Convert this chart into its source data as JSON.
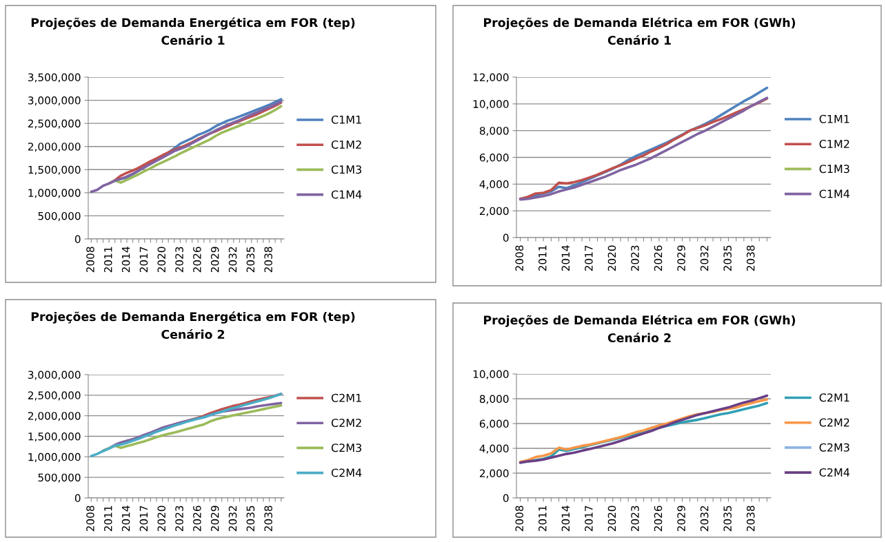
{
  "chart_data": [
    {
      "type": "line",
      "title": "Projeções de Demanda Energética em FOR (tep)",
      "subtitle": "Cenário 1",
      "categories": [
        "2008",
        null,
        null,
        "2011",
        null,
        null,
        "2014",
        null,
        null,
        "2017",
        null,
        null,
        "2020",
        null,
        null,
        "2023",
        null,
        null,
        "2026",
        null,
        null,
        "2029",
        null,
        null,
        "2032",
        null,
        null,
        "2035",
        null,
        null,
        "2038",
        null,
        null
      ],
      "series": [
        {
          "name": "C1M1",
          "color": "#4f81bd",
          "values": [
            null,
            null,
            null,
            null,
            1270000,
            1300000,
            1330000,
            1400000,
            1480000,
            1560000,
            1640000,
            1710000,
            1790000,
            1870000,
            1960000,
            2060000,
            2120000,
            2180000,
            2250000,
            2300000,
            2360000,
            2440000,
            2500000,
            2560000,
            2600000,
            2650000,
            2700000,
            2750000,
            2800000,
            2850000,
            2900000,
            2960000,
            3020000
          ]
        },
        {
          "name": "C1M2",
          "color": "#c0504d",
          "values": [
            null,
            null,
            null,
            1200000,
            1270000,
            1370000,
            1430000,
            1480000,
            1540000,
            1610000,
            1680000,
            1740000,
            1810000,
            1870000,
            1930000,
            1980000,
            2030000,
            2090000,
            2160000,
            2220000,
            2280000,
            2330000,
            2390000,
            2440000,
            2500000,
            2550000,
            2600000,
            2650000,
            2700000,
            2760000,
            2820000,
            2880000,
            2950000
          ]
        },
        {
          "name": "C1M3",
          "color": "#9bbb59",
          "values": [
            null,
            null,
            null,
            1200000,
            1260000,
            1220000,
            1280000,
            1340000,
            1400000,
            1470000,
            1530000,
            1600000,
            1660000,
            1720000,
            1780000,
            1850000,
            1910000,
            1970000,
            2030000,
            2090000,
            2150000,
            2230000,
            2300000,
            2350000,
            2400000,
            2450000,
            2500000,
            2560000,
            2610000,
            2660000,
            2720000,
            2790000,
            2870000
          ]
        },
        {
          "name": "C1M4",
          "color": "#8064a2",
          "values": [
            1020000,
            1060000,
            1150000,
            1200000,
            1260000,
            1300000,
            1350000,
            1410000,
            1480000,
            1550000,
            1620000,
            1690000,
            1760000,
            1830000,
            1900000,
            1950000,
            2000000,
            2070000,
            2140000,
            2210000,
            2280000,
            2350000,
            2410000,
            2470000,
            2520000,
            2570000,
            2630000,
            2690000,
            2740000,
            2800000,
            2850000,
            2910000,
            2970000
          ]
        }
      ],
      "ylim": [
        0,
        3500000
      ],
      "yticks": [
        {
          "value": 0,
          "label": "0"
        },
        {
          "value": 500000,
          "label": "500,000"
        },
        {
          "value": 1000000,
          "label": "1,000,000"
        },
        {
          "value": 1500000,
          "label": "1,500,000"
        },
        {
          "value": 2000000,
          "label": "2,000,000"
        },
        {
          "value": 2500000,
          "label": "2,500,000"
        },
        {
          "value": 3000000,
          "label": "3,000,000"
        },
        {
          "value": 3500000,
          "label": "3,500,000"
        }
      ],
      "grid": "y",
      "legend": "right",
      "marker": "none",
      "line_style": "solid"
    },
    {
      "type": "line",
      "title": "Projeções de Demanda Elétrica em FOR (GWh)",
      "subtitle": "Cenário 1",
      "categories": [
        "2008",
        null,
        null,
        "2011",
        null,
        null,
        "2014",
        null,
        null,
        "2017",
        null,
        null,
        "2020",
        null,
        null,
        "2023",
        null,
        null,
        "2026",
        null,
        null,
        "2029",
        null,
        null,
        "2032",
        null,
        null,
        "2035",
        null,
        null,
        "2038",
        null,
        null
      ],
      "series": [
        {
          "name": "C1M1",
          "color": "#4f81bd",
          "values": [
            2900,
            3000,
            3150,
            3300,
            3450,
            3800,
            3700,
            3900,
            4150,
            4400,
            4650,
            4900,
            5150,
            5450,
            5800,
            6100,
            6350,
            6600,
            6850,
            7100,
            7400,
            7700,
            8000,
            8250,
            8500,
            8800,
            9150,
            9500,
            9850,
            10200,
            10500,
            10850,
            11200
          ]
        },
        {
          "name": "C1M2",
          "color": "#c0504d",
          "values": [
            2900,
            3050,
            3300,
            3350,
            3550,
            4100,
            4050,
            4150,
            4300,
            4500,
            4700,
            4950,
            5200,
            5400,
            5650,
            5900,
            6150,
            6450,
            6700,
            7000,
            7350,
            7650,
            8000,
            8200,
            8400,
            8650,
            8850,
            9100,
            9350,
            9600,
            9850,
            10100,
            10400
          ]
        },
        {
          "name": "C1M3",
          "color": "#9bbb59",
          "values": [
            null,
            null,
            null,
            null,
            null,
            null,
            null,
            null,
            null,
            null,
            null,
            null,
            null,
            null,
            null,
            null,
            null,
            null,
            null,
            null,
            null,
            null,
            null,
            null,
            null,
            null,
            null,
            null,
            null,
            null,
            null,
            null,
            null
          ]
        },
        {
          "name": "C1M4",
          "color": "#8064a2",
          "values": [
            2850,
            2900,
            3000,
            3100,
            3250,
            3450,
            3600,
            3750,
            3950,
            4150,
            4350,
            4550,
            4800,
            5050,
            5250,
            5450,
            5700,
            5950,
            6250,
            6550,
            6850,
            7150,
            7450,
            7750,
            8000,
            8300,
            8600,
            8900,
            9200,
            9500,
            9850,
            10150,
            10450
          ]
        }
      ],
      "ylim": [
        0,
        12000
      ],
      "yticks": [
        {
          "value": 0,
          "label": "0"
        },
        {
          "value": 2000,
          "label": "2,000"
        },
        {
          "value": 4000,
          "label": "4,000"
        },
        {
          "value": 6000,
          "label": "6,000"
        },
        {
          "value": 8000,
          "label": "8,000"
        },
        {
          "value": 10000,
          "label": "10,000"
        },
        {
          "value": 12000,
          "label": "12,000"
        }
      ],
      "grid": "y",
      "legend": "right",
      "marker": "none",
      "line_style": "solid"
    },
    {
      "type": "line",
      "title": "Projeções de Demanda Energética em FOR (tep)",
      "subtitle": "Cenário 2",
      "categories": [
        "2008",
        null,
        null,
        "2011",
        null,
        null,
        "2014",
        null,
        null,
        "2017",
        null,
        null,
        "2020",
        null,
        null,
        "2023",
        null,
        null,
        "2026",
        null,
        null,
        "2029",
        null,
        null,
        "2032",
        null,
        null,
        "2035",
        null,
        null,
        "2038",
        null,
        null
      ],
      "series": [
        {
          "name": "C2M1",
          "color": "#c0504d",
          "values": [
            null,
            null,
            null,
            null,
            null,
            null,
            null,
            null,
            null,
            null,
            null,
            null,
            1700000,
            1740000,
            1790000,
            1830000,
            1870000,
            1910000,
            1950000,
            2000000,
            2060000,
            2110000,
            2160000,
            2200000,
            2240000,
            2270000,
            2310000,
            2350000,
            2390000,
            2420000,
            2450000,
            2490000,
            2530000
          ]
        },
        {
          "name": "C2M2",
          "color": "#8064a2",
          "values": [
            null,
            null,
            1150000,
            1210000,
            1290000,
            1350000,
            1390000,
            1430000,
            1480000,
            1540000,
            1590000,
            1650000,
            1710000,
            1750000,
            1790000,
            1830000,
            1870000,
            1900000,
            1930000,
            1970000,
            2020000,
            2060000,
            2100000,
            2120000,
            2140000,
            2160000,
            2180000,
            2200000,
            2230000,
            2250000,
            2270000,
            2290000,
            2310000
          ]
        },
        {
          "name": "C2M3",
          "color": "#9bbb59",
          "values": [
            null,
            null,
            1150000,
            1210000,
            1270000,
            1220000,
            1260000,
            1300000,
            1340000,
            1380000,
            1430000,
            1480000,
            1520000,
            1560000,
            1590000,
            1630000,
            1670000,
            1710000,
            1750000,
            1790000,
            1860000,
            1910000,
            1950000,
            1980000,
            2010000,
            2040000,
            2070000,
            2100000,
            2130000,
            2160000,
            2190000,
            2220000,
            2250000
          ]
        },
        {
          "name": "C2M4",
          "color": "#4bacc6",
          "values": [
            1020000,
            1070000,
            1140000,
            1200000,
            1270000,
            1300000,
            1340000,
            1390000,
            1440000,
            1500000,
            1550000,
            1610000,
            1660000,
            1710000,
            1760000,
            1800000,
            1850000,
            1890000,
            1930000,
            1960000,
            2010000,
            2060000,
            2100000,
            2150000,
            2190000,
            2230000,
            2270000,
            2310000,
            2350000,
            2390000,
            2430000,
            2480000,
            2530000
          ]
        }
      ],
      "ylim": [
        0,
        3000000
      ],
      "yticks": [
        {
          "value": 0,
          "label": "0"
        },
        {
          "value": 500000,
          "label": "500,000"
        },
        {
          "value": 1000000,
          "label": "1,000,000"
        },
        {
          "value": 1500000,
          "label": "1,500,000"
        },
        {
          "value": 2000000,
          "label": "2,000,000"
        },
        {
          "value": 2500000,
          "label": "2,500,000"
        },
        {
          "value": 3000000,
          "label": "3,000,000"
        }
      ],
      "grid": "y",
      "legend": "right",
      "marker": "none",
      "line_style": "solid"
    },
    {
      "type": "line",
      "title": "Projeções de Demanda Elétrica em FOR (GWh)",
      "subtitle": "Cenário 2",
      "categories": [
        "2008",
        null,
        null,
        "2011",
        null,
        null,
        "2014",
        null,
        null,
        "2017",
        null,
        null,
        "2020",
        null,
        null,
        "2023",
        null,
        null,
        "2026",
        null,
        null,
        "2029",
        null,
        null,
        "2032",
        null,
        null,
        "2035",
        null,
        null,
        "2038",
        null,
        null
      ],
      "series": [
        {
          "name": "C2M1",
          "color": "#31a0b5",
          "values": [
            2850,
            2950,
            3050,
            3150,
            3350,
            3900,
            3800,
            3950,
            4100,
            4250,
            4400,
            4550,
            4700,
            4850,
            5000,
            5150,
            5300,
            5450,
            5650,
            5800,
            5950,
            6100,
            6200,
            6300,
            6450,
            6600,
            6750,
            6850,
            7000,
            7150,
            7300,
            7450,
            7650
          ]
        },
        {
          "name": "C2M2",
          "color": "#f79646",
          "values": [
            2900,
            3050,
            3300,
            3400,
            3600,
            4050,
            3900,
            4050,
            4200,
            4300,
            4450,
            4600,
            4750,
            4900,
            5100,
            5300,
            5450,
            5650,
            5850,
            6000,
            6200,
            6400,
            6600,
            6750,
            6850,
            6950,
            7100,
            7200,
            7300,
            7500,
            7650,
            7800,
            7950
          ]
        },
        {
          "name": "C2M3",
          "color": "#8eb4e3",
          "values": [
            null,
            null,
            null,
            null,
            null,
            null,
            null,
            null,
            null,
            null,
            null,
            null,
            null,
            null,
            null,
            null,
            null,
            null,
            null,
            null,
            null,
            null,
            null,
            null,
            null,
            null,
            null,
            null,
            null,
            null,
            null,
            null,
            null
          ]
        },
        {
          "name": "C2M4",
          "color": "#6a3f86",
          "values": [
            2850,
            2950,
            3000,
            3100,
            3250,
            3400,
            3550,
            3650,
            3800,
            3950,
            4100,
            4250,
            4400,
            4600,
            4800,
            5000,
            5200,
            5400,
            5650,
            5850,
            6100,
            6300,
            6500,
            6700,
            6850,
            7000,
            7150,
            7300,
            7500,
            7700,
            7850,
            8050,
            8250
          ]
        }
      ],
      "ylim": [
        0,
        10000
      ],
      "yticks": [
        {
          "value": 0,
          "label": "0"
        },
        {
          "value": 2000,
          "label": "2,000"
        },
        {
          "value": 4000,
          "label": "4,000"
        },
        {
          "value": 6000,
          "label": "6,000"
        },
        {
          "value": 8000,
          "label": "8,000"
        },
        {
          "value": 10000,
          "label": "10,000"
        }
      ],
      "grid": "y",
      "legend": "right",
      "marker": "none",
      "line_style": "solid"
    }
  ]
}
